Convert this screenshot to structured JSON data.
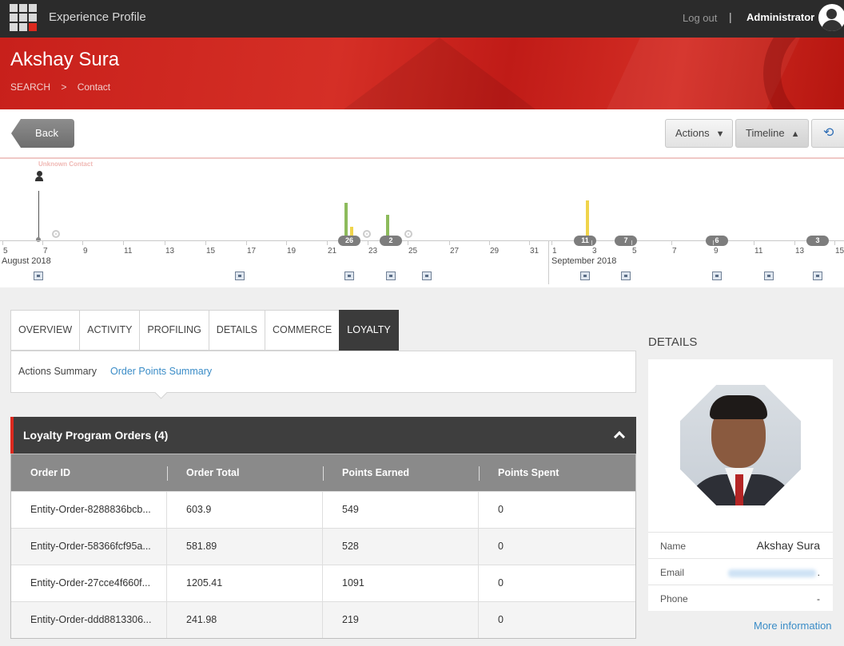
{
  "app": {
    "title": "Experience Profile",
    "logout": "Log out",
    "separator": "|",
    "user": "Administrator"
  },
  "header": {
    "contact_name": "Akshay Sura",
    "breadcrumb": [
      "SEARCH",
      ">",
      "Contact"
    ]
  },
  "toolbar": {
    "back": "Back",
    "actions": "Actions",
    "timeline": "Timeline",
    "actions_icon": "caret-down",
    "timeline_icon": "caret-up",
    "refresh_icon": "refresh"
  },
  "timeline": {
    "unknown_label": "Unknown Contact",
    "ticks": [
      "5",
      "7",
      "9",
      "11",
      "13",
      "15",
      "17",
      "19",
      "21",
      "23",
      "25",
      "27",
      "29",
      "31",
      "1",
      "3",
      "5",
      "7",
      "9",
      "11",
      "13",
      "15"
    ],
    "months": [
      "August 2018",
      "September 2018"
    ],
    "badges": [
      "26",
      "2",
      "11",
      "7",
      "6",
      "3"
    ],
    "colors": {
      "green": "#8dbb5c",
      "yellow": "#f0d44b"
    }
  },
  "tabs": [
    "OVERVIEW",
    "ACTIVITY",
    "PROFILING",
    "DETAILS",
    "COMMERCE",
    "LOYALTY"
  ],
  "active_tab": "LOYALTY",
  "subnav": {
    "item1": "Actions Summary",
    "item2": "Order Points Summary"
  },
  "panel": {
    "title": "Loyalty Program Orders (4)",
    "columns": [
      "Order ID",
      "Order Total",
      "Points Earned",
      "Points Spent"
    ],
    "rows": [
      [
        "Entity-Order-8288836bcb...",
        "603.9",
        "549",
        "0"
      ],
      [
        "Entity-Order-58366fcf95a...",
        "581.89",
        "528",
        "0"
      ],
      [
        "Entity-Order-27cce4f660f...",
        "1205.41",
        "1091",
        "0"
      ],
      [
        "Entity-Order-ddd8813306...",
        "241.98",
        "219",
        "0"
      ]
    ]
  },
  "details": {
    "title": "DETAILS",
    "name_label": "Name",
    "name_value": "Akshay Sura",
    "email_label": "Email",
    "email_value": ".",
    "phone_label": "Phone",
    "phone_value": "-",
    "more": "More information"
  },
  "colors": {
    "accent_red": "#dc291e",
    "link_blue": "#3a8cc7"
  }
}
